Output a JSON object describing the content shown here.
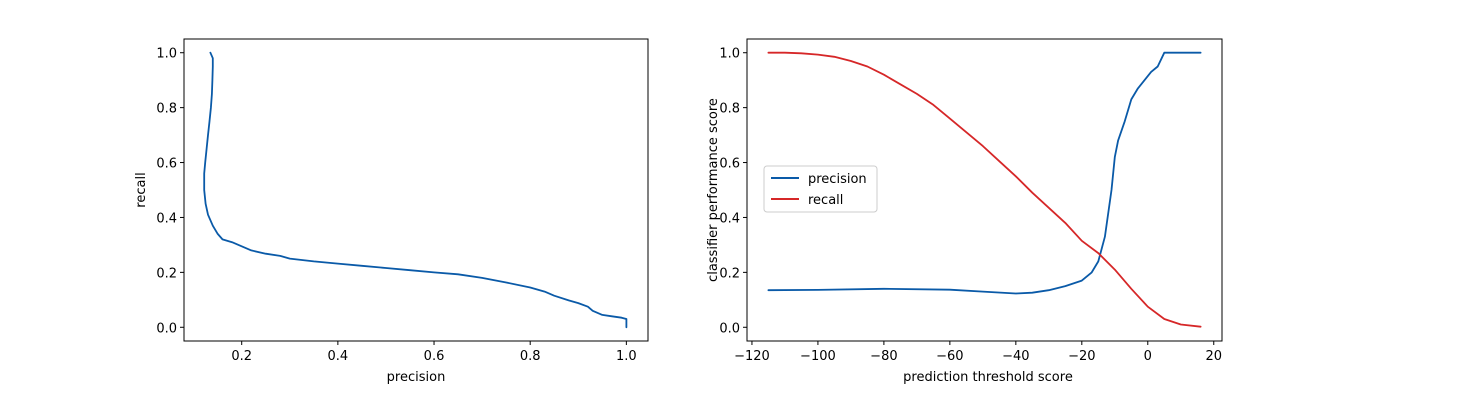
{
  "colors": {
    "precision": "#0a5aa8",
    "recall": "#d62728",
    "axes": "#000000",
    "background": "#ffffff"
  },
  "chart_data": [
    {
      "type": "line",
      "xlabel": "precision",
      "ylabel": "recall",
      "xlim": [
        0.08,
        1.045
      ],
      "ylim": [
        -0.05,
        1.05
      ],
      "xticks": [
        0.2,
        0.4,
        0.6,
        0.8,
        1.0
      ],
      "xtick_labels": [
        "0.2",
        "0.4",
        "0.6",
        "0.8",
        "1.0"
      ],
      "yticks": [
        0.0,
        0.2,
        0.4,
        0.6,
        0.8,
        1.0
      ],
      "ytick_labels": [
        "0.0",
        "0.2",
        "0.4",
        "0.6",
        "0.8",
        "1.0"
      ],
      "grid": false,
      "legend": null,
      "series": [
        {
          "color": "#0a5aa8",
          "points": [
            [
              0.135,
              1.0
            ],
            [
              0.14,
              0.98
            ],
            [
              0.14,
              0.95
            ],
            [
              0.139,
              0.9
            ],
            [
              0.138,
              0.85
            ],
            [
              0.136,
              0.8
            ],
            [
              0.133,
              0.75
            ],
            [
              0.13,
              0.7
            ],
            [
              0.127,
              0.65
            ],
            [
              0.124,
              0.6
            ],
            [
              0.122,
              0.56
            ],
            [
              0.122,
              0.5
            ],
            [
              0.125,
              0.45
            ],
            [
              0.13,
              0.41
            ],
            [
              0.14,
              0.37
            ],
            [
              0.15,
              0.34
            ],
            [
              0.16,
              0.32
            ],
            [
              0.18,
              0.31
            ],
            [
              0.2,
              0.295
            ],
            [
              0.22,
              0.28
            ],
            [
              0.25,
              0.268
            ],
            [
              0.28,
              0.26
            ],
            [
              0.3,
              0.25
            ],
            [
              0.35,
              0.24
            ],
            [
              0.4,
              0.232
            ],
            [
              0.45,
              0.224
            ],
            [
              0.5,
              0.216
            ],
            [
              0.55,
              0.208
            ],
            [
              0.6,
              0.2
            ],
            [
              0.65,
              0.193
            ],
            [
              0.7,
              0.18
            ],
            [
              0.75,
              0.163
            ],
            [
              0.8,
              0.145
            ],
            [
              0.83,
              0.13
            ],
            [
              0.85,
              0.115
            ],
            [
              0.88,
              0.098
            ],
            [
              0.9,
              0.088
            ],
            [
              0.92,
              0.075
            ],
            [
              0.93,
              0.06
            ],
            [
              0.95,
              0.045
            ],
            [
              0.97,
              0.04
            ],
            [
              0.99,
              0.035
            ],
            [
              1.0,
              0.03
            ],
            [
              1.0,
              0.0
            ]
          ]
        }
      ]
    },
    {
      "type": "line",
      "xlabel": "prediction threshold score",
      "ylabel": "classifier performance score",
      "xlim": [
        -121.5,
        22.5
      ],
      "ylim": [
        -0.05,
        1.05
      ],
      "xticks": [
        -120,
        -100,
        -80,
        -60,
        -40,
        -20,
        0,
        20
      ],
      "xtick_labels": [
        "−120",
        "−100",
        "−80",
        "−60",
        "−40",
        "−20",
        "0",
        "20"
      ],
      "yticks": [
        0.0,
        0.2,
        0.4,
        0.6,
        0.8,
        1.0
      ],
      "ytick_labels": [
        "0.0",
        "0.2",
        "0.4",
        "0.6",
        "0.8",
        "1.0"
      ],
      "grid": false,
      "legend": "center-left",
      "series": [
        {
          "name": "precision",
          "color": "#0a5aa8",
          "points": [
            [
              -115,
              0.135
            ],
            [
              -100,
              0.136
            ],
            [
              -80,
              0.14
            ],
            [
              -60,
              0.137
            ],
            [
              -50,
              0.13
            ],
            [
              -40,
              0.123
            ],
            [
              -35,
              0.126
            ],
            [
              -30,
              0.135
            ],
            [
              -25,
              0.15
            ],
            [
              -20,
              0.17
            ],
            [
              -17,
              0.2
            ],
            [
              -15,
              0.24
            ],
            [
              -13,
              0.33
            ],
            [
              -11,
              0.5
            ],
            [
              -10,
              0.62
            ],
            [
              -9,
              0.68
            ],
            [
              -7,
              0.75
            ],
            [
              -5,
              0.83
            ],
            [
              -3,
              0.87
            ],
            [
              -1,
              0.9
            ],
            [
              1,
              0.93
            ],
            [
              3,
              0.95
            ],
            [
              5,
              1.0
            ],
            [
              16,
              1.0
            ]
          ]
        },
        {
          "name": "recall",
          "color": "#d62728",
          "points": [
            [
              -115,
              1.0
            ],
            [
              -110,
              1.0
            ],
            [
              -105,
              0.998
            ],
            [
              -100,
              0.993
            ],
            [
              -95,
              0.985
            ],
            [
              -90,
              0.97
            ],
            [
              -85,
              0.95
            ],
            [
              -80,
              0.92
            ],
            [
              -75,
              0.885
            ],
            [
              -70,
              0.85
            ],
            [
              -65,
              0.81
            ],
            [
              -60,
              0.76
            ],
            [
              -55,
              0.71
            ],
            [
              -50,
              0.66
            ],
            [
              -45,
              0.605
            ],
            [
              -40,
              0.55
            ],
            [
              -35,
              0.49
            ],
            [
              -30,
              0.435
            ],
            [
              -25,
              0.38
            ],
            [
              -20,
              0.315
            ],
            [
              -15,
              0.27
            ],
            [
              -10,
              0.21
            ],
            [
              -5,
              0.14
            ],
            [
              0,
              0.075
            ],
            [
              5,
              0.03
            ],
            [
              10,
              0.01
            ],
            [
              16,
              0.002
            ]
          ]
        }
      ]
    }
  ]
}
